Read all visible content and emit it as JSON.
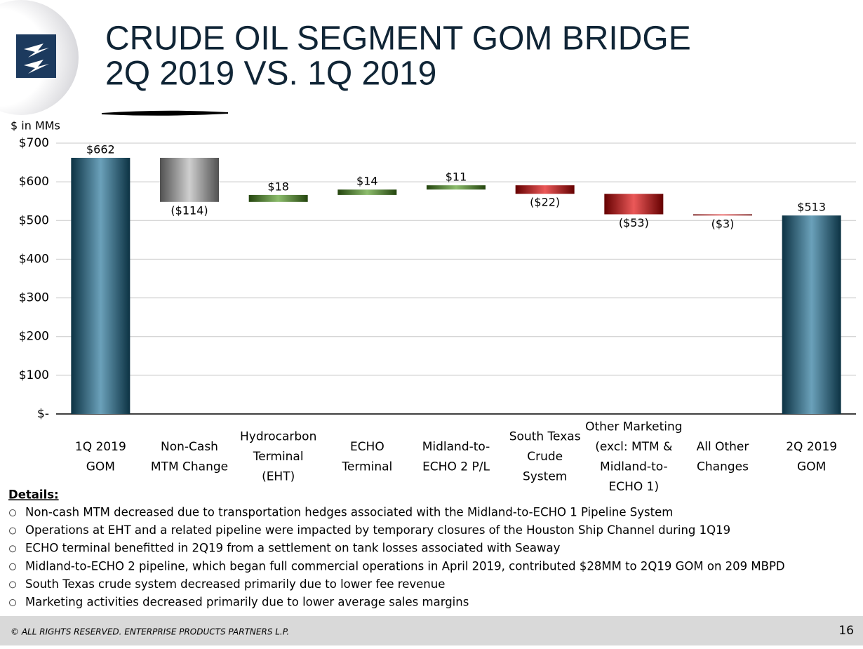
{
  "header": {
    "title": [
      "CRUDE OIL SEGMENT GOM BRIDGE",
      "2Q 2019 VS. 1Q 2019"
    ]
  },
  "chart_data": {
    "type": "waterfall",
    "y_axis_label": "$ in MMs",
    "categories": [
      [
        "1Q 2019",
        "GOM"
      ],
      [
        "Non-Cash",
        "MTM Change"
      ],
      [
        "Hydrocarbon",
        "Terminal",
        "(EHT)"
      ],
      [
        "ECHO",
        "Terminal"
      ],
      [
        "Midland-to-",
        "ECHO 2 P/L"
      ],
      [
        "South Texas",
        "Crude",
        "System"
      ],
      [
        "Other Marketing",
        "(excl: MTM &",
        "Midland-to-",
        "ECHO 1)"
      ],
      [
        "All Other",
        "Changes"
      ],
      [
        "2Q 2019",
        "GOM"
      ]
    ],
    "values": [
      662,
      -114,
      18,
      14,
      11,
      -22,
      -53,
      -3,
      513
    ],
    "value_labels": [
      "$662",
      "($114)",
      "$18",
      "$14",
      "$11",
      "($22)",
      "($53)",
      "($3)",
      "$513"
    ],
    "total_indices": [
      0,
      8
    ],
    "colors": [
      "#1b6f95",
      "#b5b5b5",
      "#4f9a1f",
      "#4f9a1f",
      "#4f9a1f",
      "#e00000",
      "#e00000",
      "#e00000",
      "#1b6f95"
    ],
    "ylim": [
      0,
      700
    ],
    "yticks": [
      {
        "value": 0,
        "label": "$-"
      },
      {
        "value": 100,
        "label": "$100"
      },
      {
        "value": 200,
        "label": "$200"
      },
      {
        "value": 300,
        "label": "$300"
      },
      {
        "value": 400,
        "label": "$400"
      },
      {
        "value": 500,
        "label": "$500"
      },
      {
        "value": 600,
        "label": "$600"
      },
      {
        "value": 700,
        "label": "$700"
      }
    ],
    "grid": true
  },
  "details": {
    "heading": "Details:",
    "items": [
      "Non-cash MTM decreased due to transportation hedges associated with the Midland-to-ECHO 1 Pipeline System",
      "Operations at EHT and a related pipeline were impacted by temporary closures of the Houston Ship Channel during 1Q19",
      "ECHO terminal benefitted in 2Q19 from a settlement on tank losses associated with Seaway",
      "Midland-to-ECHO 2 pipeline, which began full commercial operations in April 2019, contributed $28MM to 2Q19 GOM on 209 MBPD",
      "South Texas crude system decreased primarily due to lower fee revenue",
      "Marketing activities decreased primarily due to lower average sales margins"
    ]
  },
  "footer": {
    "copyright": "© ALL RIGHTS RESERVED. ENTERPRISE PRODUCTS PARTNERS L.P.",
    "page": "16"
  }
}
